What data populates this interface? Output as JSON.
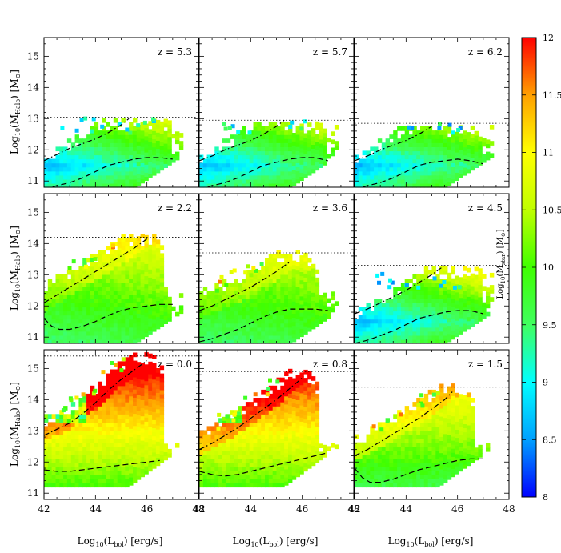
{
  "figure": {
    "y_axis_label_main": "Log",
    "y_axis_label_sub": "10",
    "y_axis_label_paren": "(M",
    "y_axis_label_halo": "Halo",
    "y_axis_label_units": ") [M",
    "y_axis_label_sun": "⊙",
    "y_axis_label_close": "]",
    "x_axis_label_main": "Log",
    "x_axis_label_sub": "10",
    "x_axis_label_paren": "(L",
    "x_axis_label_bol": "bol",
    "x_axis_label_units": ") [erg/s]",
    "colorbar_label_main": "Log",
    "colorbar_label_sub": "10",
    "colorbar_label_paren": "(M",
    "colorbar_label_star": "star",
    "colorbar_label_units": ") [M",
    "colorbar_label_sun": "⊙",
    "colorbar_label_close": "]"
  },
  "chart_data": {
    "type": "heatmap",
    "xlim": [
      42,
      48
    ],
    "ylim": [
      10.8,
      15.6
    ],
    "x_ticks": [
      "42",
      "44",
      "46",
      "48"
    ],
    "y_ticks": [
      "11",
      "12",
      "13",
      "14",
      "15"
    ],
    "colorbar": {
      "range": [
        8,
        12
      ],
      "ticks": [
        "8",
        "8.5",
        "9",
        "9.5",
        "10",
        "10.5",
        "11",
        "11.5",
        "12"
      ],
      "colormap": [
        "#0000ff",
        "#00a0ff",
        "#00ffff",
        "#40ff60",
        "#40ff00",
        "#c0ff00",
        "#ffff00",
        "#ffa000",
        "#ff0000"
      ]
    },
    "panels": [
      {
        "label": "z = 5.3",
        "redshift": 5.3,
        "max_mass_line": 13.05,
        "mean_curve": {
          "x": [
            42.0,
            42.5,
            43.0,
            43.5,
            44.0,
            44.5,
            45.0,
            45.3
          ],
          "y": [
            11.65,
            11.85,
            12.05,
            12.2,
            12.35,
            12.55,
            12.8,
            13.0
          ]
        },
        "median_curve": {
          "x": [
            42.0,
            42.5,
            43.0,
            43.5,
            44.0,
            44.5,
            45.0,
            45.5,
            46.0,
            46.5,
            47.0
          ],
          "y": [
            10.75,
            10.85,
            10.95,
            11.1,
            11.3,
            11.5,
            11.6,
            11.7,
            11.75,
            11.75,
            11.7
          ]
        }
      },
      {
        "label": "z = 5.7",
        "redshift": 5.7,
        "max_mass_line": 12.95,
        "mean_curve": {
          "x": [
            42.0,
            42.5,
            43.0,
            43.5,
            44.0,
            44.5,
            45.0,
            45.3
          ],
          "y": [
            11.65,
            11.8,
            12.0,
            12.15,
            12.3,
            12.5,
            12.75,
            12.95
          ]
        },
        "median_curve": {
          "x": [
            42.0,
            42.5,
            43.0,
            43.5,
            44.0,
            44.5,
            45.0,
            45.5,
            46.0,
            46.5,
            47.0
          ],
          "y": [
            10.75,
            10.85,
            10.95,
            11.1,
            11.3,
            11.5,
            11.6,
            11.7,
            11.75,
            11.75,
            11.65
          ]
        }
      },
      {
        "label": "z = 6.2",
        "redshift": 6.2,
        "max_mass_line": 12.85,
        "mean_curve": {
          "x": [
            42.0,
            42.5,
            43.0,
            43.5,
            44.0,
            44.5,
            45.0
          ],
          "y": [
            11.65,
            11.8,
            12.0,
            12.15,
            12.3,
            12.5,
            12.75
          ]
        },
        "median_curve": {
          "x": [
            42.0,
            42.5,
            43.0,
            43.5,
            44.0,
            44.5,
            45.0,
            45.5,
            46.0,
            46.5,
            47.0
          ],
          "y": [
            10.75,
            10.85,
            10.95,
            11.1,
            11.3,
            11.5,
            11.6,
            11.65,
            11.7,
            11.65,
            11.55
          ]
        }
      },
      {
        "label": "z = 2.2",
        "redshift": 2.2,
        "max_mass_line": 14.2,
        "mean_curve": {
          "x": [
            42.0,
            42.5,
            43.0,
            43.5,
            44.0,
            44.5,
            45.0,
            45.5,
            46.0
          ],
          "y": [
            12.1,
            12.35,
            12.6,
            12.85,
            13.1,
            13.35,
            13.6,
            13.85,
            14.15
          ]
        },
        "median_curve": {
          "x": [
            42.0,
            42.3,
            42.6,
            43.0,
            43.5,
            44.0,
            44.5,
            45.0,
            45.5,
            46.0,
            46.5,
            47.0
          ],
          "y": [
            11.6,
            11.35,
            11.25,
            11.25,
            11.35,
            11.5,
            11.7,
            11.85,
            11.95,
            12.0,
            12.05,
            12.05
          ]
        }
      },
      {
        "label": "z = 3.6",
        "redshift": 3.6,
        "max_mass_line": 13.7,
        "mean_curve": {
          "x": [
            42.0,
            42.5,
            43.0,
            43.5,
            44.0,
            44.5,
            45.0,
            45.5
          ],
          "y": [
            11.85,
            12.0,
            12.2,
            12.4,
            12.6,
            12.85,
            13.1,
            13.4
          ]
        },
        "median_curve": {
          "x": [
            42.0,
            42.5,
            43.0,
            43.5,
            44.0,
            44.5,
            45.0,
            45.5,
            46.0,
            46.5,
            47.0
          ],
          "y": [
            10.85,
            10.95,
            11.1,
            11.25,
            11.45,
            11.65,
            11.8,
            11.9,
            11.9,
            11.9,
            11.85
          ]
        }
      },
      {
        "label": "z = 4.5",
        "redshift": 4.5,
        "max_mass_line": 13.3,
        "mean_curve": {
          "x": [
            42.0,
            42.5,
            43.0,
            43.5,
            44.0,
            44.5,
            45.0,
            45.5
          ],
          "y": [
            11.75,
            11.9,
            12.1,
            12.3,
            12.5,
            12.75,
            13.0,
            13.3
          ]
        },
        "median_curve": {
          "x": [
            42.0,
            42.5,
            43.0,
            43.5,
            44.0,
            44.5,
            45.0,
            45.5,
            46.0,
            46.5,
            47.0
          ],
          "y": [
            10.8,
            10.9,
            11.05,
            11.2,
            11.4,
            11.6,
            11.7,
            11.8,
            11.85,
            11.85,
            11.75
          ]
        }
      },
      {
        "label": "z = 0.0",
        "redshift": 0.0,
        "max_mass_line": 15.4,
        "mean_curve": {
          "x": [
            42.0,
            42.5,
            43.0,
            43.5,
            44.0,
            44.5,
            45.0,
            45.5,
            46.0
          ],
          "y": [
            12.85,
            13.05,
            13.25,
            13.55,
            13.9,
            14.3,
            14.65,
            14.95,
            15.25
          ]
        },
        "median_curve": {
          "x": [
            42.0,
            42.5,
            43.0,
            43.5,
            44.0,
            44.5,
            45.0,
            45.5,
            46.0,
            46.5
          ],
          "y": [
            11.75,
            11.7,
            11.7,
            11.75,
            11.8,
            11.85,
            11.9,
            11.95,
            12.0,
            12.05
          ]
        }
      },
      {
        "label": "z = 0.8",
        "redshift": 0.8,
        "max_mass_line": 14.9,
        "mean_curve": {
          "x": [
            42.0,
            42.5,
            43.0,
            43.5,
            44.0,
            44.5,
            45.0,
            45.5,
            46.0
          ],
          "y": [
            12.4,
            12.6,
            12.85,
            13.1,
            13.4,
            13.7,
            14.0,
            14.35,
            14.7
          ]
        },
        "median_curve": {
          "x": [
            42.0,
            42.5,
            43.0,
            43.5,
            44.0,
            44.5,
            45.0,
            45.5,
            46.0,
            46.5,
            47.0
          ],
          "y": [
            11.7,
            11.6,
            11.55,
            11.6,
            11.7,
            11.8,
            11.9,
            12.0,
            12.1,
            12.2,
            12.3
          ]
        }
      },
      {
        "label": "z = 1.5",
        "redshift": 1.5,
        "max_mass_line": 14.4,
        "mean_curve": {
          "x": [
            42.0,
            42.5,
            43.0,
            43.5,
            44.0,
            44.5,
            45.0,
            45.5,
            45.8
          ],
          "y": [
            12.2,
            12.4,
            12.65,
            12.9,
            13.15,
            13.4,
            13.7,
            14.0,
            14.25
          ]
        },
        "median_curve": {
          "x": [
            42.0,
            42.3,
            42.6,
            43.0,
            43.5,
            44.0,
            44.5,
            45.0,
            45.5,
            46.0,
            46.5,
            47.0
          ],
          "y": [
            11.8,
            11.5,
            11.35,
            11.35,
            11.45,
            11.6,
            11.75,
            11.85,
            11.95,
            12.05,
            12.1,
            12.1
          ]
        }
      }
    ]
  }
}
